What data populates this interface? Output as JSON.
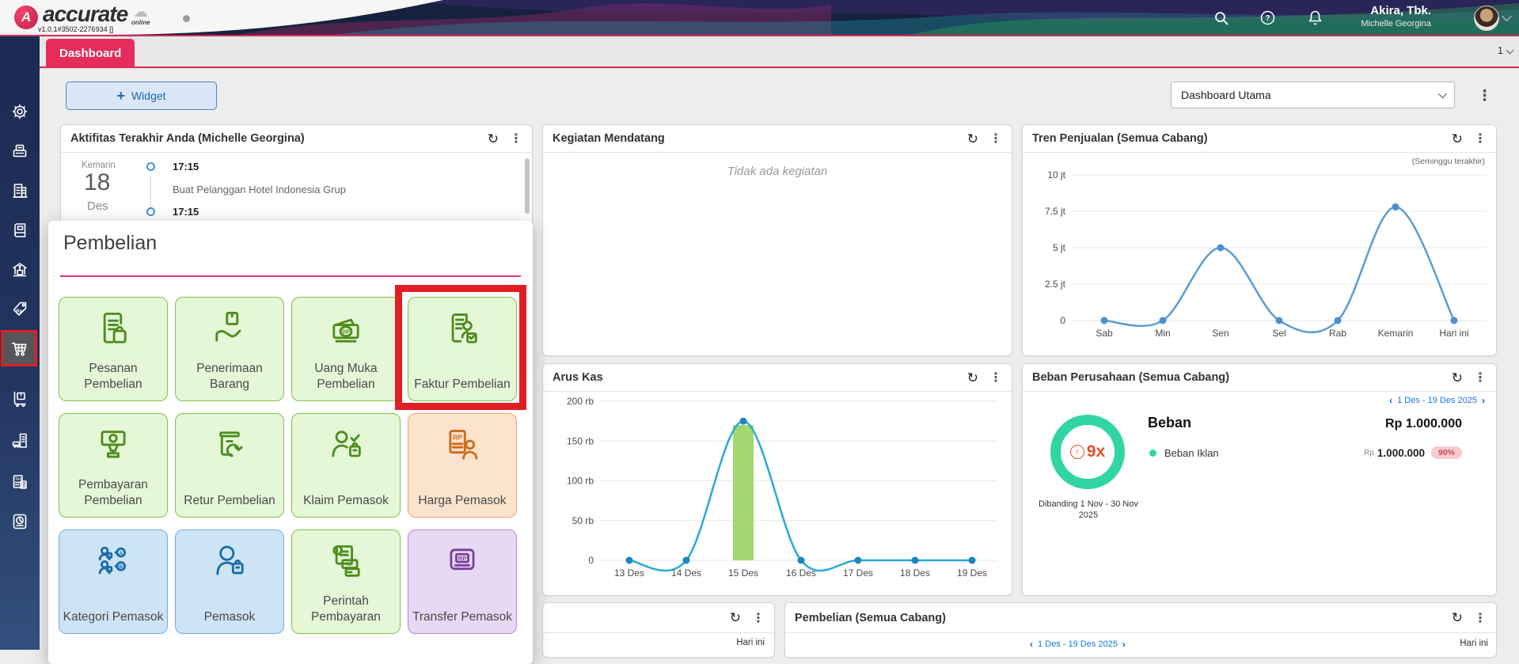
{
  "colors": {
    "accent_pink": "#e52c5a",
    "highlight_red": "#e01e24",
    "link_blue": "#1a73e8",
    "donut_teal": "#30d5a3",
    "ratio_orange": "#e2502e",
    "badge_bg": "#f7ccd1",
    "badge_text": "#cf4853",
    "tile_green": "#e4f7d6",
    "tile_orange": "#fbe3cd",
    "tile_blue": "#cde4f6",
    "tile_purple": "#e7d8f4",
    "chart_line_blue": "#5b9bd5",
    "chart_line_cyan": "#29a9d6",
    "chart_bar_green": "#97d45f"
  },
  "header": {
    "logo_text": "accurate",
    "logo_badge": "online",
    "version": "v1.0.1#3502-2276934 []",
    "company_name": "Akira, Tbk.",
    "user_name": "Michelle Georgina",
    "icons": [
      "search-icon",
      "help-icon",
      "notification-bell-icon",
      "avatar"
    ]
  },
  "tabbar": {
    "active_tab": "Dashboard",
    "page_indicator": "1"
  },
  "toolbar": {
    "add_widget_label": "Widget",
    "dashboard_select_value": "Dashboard Utama"
  },
  "sidebar": {
    "icons": [
      "settings-gear",
      "cash-register",
      "company-building",
      "ledger-book",
      "bank-building",
      "price-tag-rp",
      "shopping-cart",
      "hand-truck",
      "fleet-building",
      "tax-documents",
      "pie-report"
    ],
    "active_icon": "shopping-cart"
  },
  "popup": {
    "title": "Pembelian",
    "tiles": [
      {
        "label": "Pesanan Pembelian",
        "color": "green",
        "icon": "purchase-order"
      },
      {
        "label": "Penerimaan Barang",
        "color": "green",
        "icon": "goods-receipt"
      },
      {
        "label": "Uang Muka Pembelian",
        "color": "green",
        "icon": "down-payment"
      },
      {
        "label": "Faktur Pembelian",
        "color": "green",
        "icon": "purchase-invoice",
        "highlighted": true
      },
      {
        "label": "Pembayaran Pembelian",
        "color": "green",
        "icon": "purchase-payment"
      },
      {
        "label": "Retur Pembelian",
        "color": "green",
        "icon": "purchase-return"
      },
      {
        "label": "Klaim Pemasok",
        "color": "green",
        "icon": "supplier-claim"
      },
      {
        "label": "Harga Pemasok",
        "color": "orange",
        "icon": "supplier-price"
      },
      {
        "label": "Kategori Pemasok",
        "color": "blue",
        "icon": "supplier-category"
      },
      {
        "label": "Pemasok",
        "color": "blue",
        "icon": "supplier"
      },
      {
        "label": "Perintah Pembayaran",
        "color": "green",
        "icon": "payment-order"
      },
      {
        "label": "Transfer Pemasok",
        "color": "purple",
        "icon": "supplier-transfer"
      }
    ]
  },
  "widgets": {
    "aktifitas": {
      "title": "Aktifitas Terakhir Anda (Michelle Georgina)",
      "day_label": "Kemarin",
      "day_number": "18",
      "month_label": "Des",
      "entries": [
        {
          "time": "17:15",
          "text": "Buat Pelanggan Hotel Indonesia Grup"
        },
        {
          "time": "17:15",
          "text": ""
        }
      ]
    },
    "kegiatan": {
      "title": "Kegiatan Mendatang",
      "empty_text": "Tidak ada kegiatan"
    },
    "tren": {
      "title": "Tren Penjualan (Semua Cabang)",
      "subtitle": "(Seminggu terakhir)"
    },
    "arus_kas": {
      "title": "Arus Kas"
    },
    "beban": {
      "title": "Beban Perusahaan (Semua Cabang)",
      "date_range": "1 Des - 19 Des 2025",
      "ratio_text": "9x",
      "compare_text_line1": "Dibanding 1 Nov - 30 Nov",
      "compare_text_line2": "2025",
      "summary_label": "Beban",
      "summary_value": "Rp 1.000.000",
      "rows": [
        {
          "label": "Beban Iklan",
          "currency": "Rp",
          "value": "1.000.000",
          "badge": "90%"
        }
      ]
    },
    "bottom_left": {
      "footer_label": "Hari ini"
    },
    "pembelian": {
      "title": "Pembelian (Semua Cabang)",
      "date_range": "1 Des - 19 Des 2025",
      "footer_label": "Hari ini"
    }
  },
  "chart_data": [
    {
      "id": "tren_penjualan",
      "type": "line",
      "title": "Tren Penjualan (Semua Cabang)",
      "subtitle": "(Seminggu terakhir)",
      "categories": [
        "Sab",
        "Min",
        "Sen",
        "Sel",
        "Rab",
        "Kemarin",
        "Hari ini"
      ],
      "values": [
        0,
        0,
        5000000,
        0,
        0,
        7800000,
        0
      ],
      "yticks": [
        {
          "label": "10 jt",
          "value": 10000000
        },
        {
          "label": "7.5 jt",
          "value": 7500000
        },
        {
          "label": "5 jt",
          "value": 5000000
        },
        {
          "label": "2.5 jt",
          "value": 2500000
        },
        {
          "label": "0",
          "value": 0
        }
      ],
      "ylim": [
        0,
        10000000
      ],
      "grid": true,
      "legend": "none",
      "line_color": "#5b9bd5",
      "marker_color": "#4a90d2"
    },
    {
      "id": "arus_kas",
      "type": "line",
      "title": "Arus Kas",
      "categories": [
        "13 Des",
        "14 Des",
        "15 Des",
        "16 Des",
        "17 Des",
        "18 Des",
        "19 Des"
      ],
      "values": [
        0,
        0,
        175000,
        0,
        0,
        0,
        0
      ],
      "yticks": [
        {
          "label": "200 rb",
          "value": 200000
        },
        {
          "label": "150 rb",
          "value": 150000
        },
        {
          "label": "100 rb",
          "value": 100000
        },
        {
          "label": "50 rb",
          "value": 50000
        },
        {
          "label": "0",
          "value": 0
        }
      ],
      "ylim": [
        0,
        200000
      ],
      "grid": true,
      "legend": "none",
      "bar": {
        "category": "15 Des",
        "value": 170000,
        "color": "#97d45f"
      },
      "line_color": "#29a9d6",
      "marker_color": "#1b86c0"
    }
  ]
}
